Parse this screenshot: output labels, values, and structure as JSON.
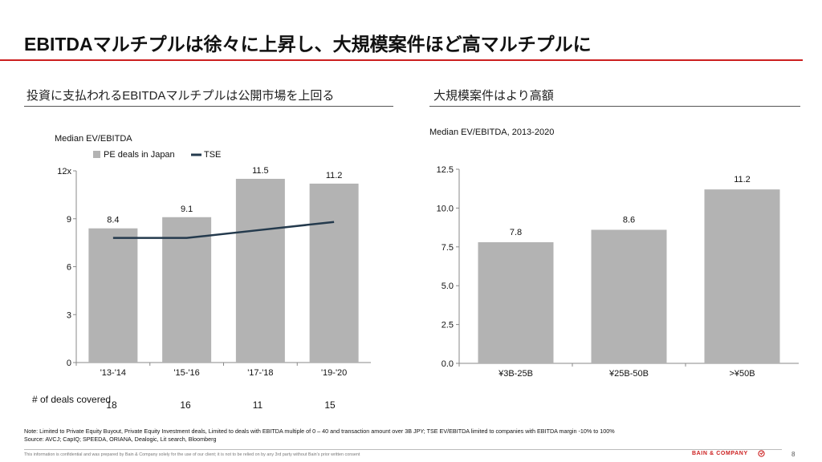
{
  "header": {
    "title": "EBITDAマルチプルは徐々に上昇し、大規模案件ほど高マルチプルに"
  },
  "left_panel": {
    "heading": "投資に支払われるEBITDAマルチプルは公開市場を上回る",
    "deals_label": "# of deals covered",
    "deals_counts": [
      "18",
      "16",
      "11",
      "15"
    ]
  },
  "right_panel": {
    "heading": "大規模案件はより高額"
  },
  "chart_data": [
    {
      "type": "bar",
      "title": "Median EV/EBITDA",
      "categories": [
        "'13-'14",
        "'15-'16",
        "'17-'18",
        "'19-'20"
      ],
      "series": [
        {
          "name": "PE deals in Japan",
          "type": "bar",
          "values": [
            8.4,
            9.1,
            11.5,
            11.2
          ],
          "color": "#b3b3b3"
        },
        {
          "name": "TSE",
          "type": "line",
          "values": [
            7.8,
            7.8,
            8.3,
            8.8
          ],
          "color": "#243a4d"
        }
      ],
      "data_labels": [
        "8.4",
        "9.1",
        "11.5",
        "11.2"
      ],
      "yticks": [
        "0",
        "3",
        "6",
        "9",
        "12x"
      ],
      "ylim": [
        0,
        12
      ],
      "legend": "top-left",
      "grid": false
    },
    {
      "type": "bar",
      "title": "Median EV/EBITDA, 2013-2020",
      "categories": [
        "¥3B-25B",
        "¥25B-50B",
        ">¥50B"
      ],
      "values": [
        7.8,
        8.6,
        11.2
      ],
      "data_labels": [
        "7.8",
        "8.6",
        "11.2"
      ],
      "yticks": [
        "0.0",
        "2.5",
        "5.0",
        "7.5",
        "10.0",
        "12.5"
      ],
      "ylim": [
        0,
        12.5
      ],
      "color": "#b3b3b3",
      "grid": false
    }
  ],
  "footer": {
    "note": "Note: Limited to Private Equity Buyout, Private Equity Investment deals, Limited to deals with EBITDA  multiple  of 0 – 40 and transaction amount over 3B JPY;  TSE  EV/EBITDA  limited to companies with EBITDA  margin  -10% to 100%",
    "source": "Source: AVCJ; CapIQ;  SPEEDA,   ORIANA,  Dealogic, Lit search, Bloomberg",
    "disclaimer": "This information is confidential and was prepared by Bain & Company solely for the use of our client; it is not to be relied on by any 3rd party without Bain's prior written consent",
    "brand": "BAIN & COMPANY",
    "page_number": "8"
  }
}
